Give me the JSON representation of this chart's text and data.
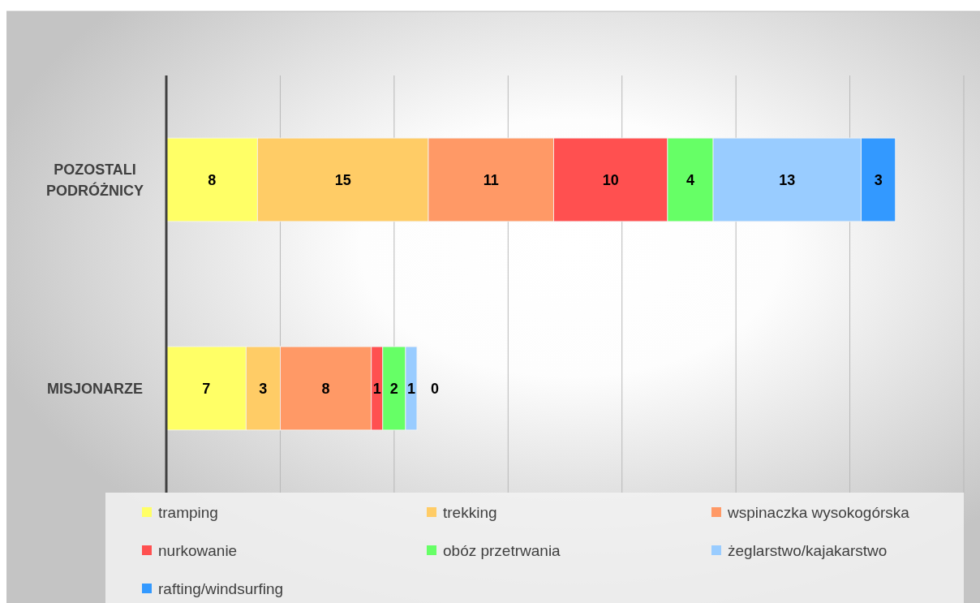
{
  "chart_data": {
    "type": "bar",
    "orientation": "horizontal",
    "stacked": true,
    "categories": [
      "POZOSTALI PODRÓŻNICY",
      "MISJONARZE"
    ],
    "series": [
      {
        "name": "tramping",
        "color": "#ffff66",
        "values": [
          8,
          7
        ]
      },
      {
        "name": "trekking",
        "color": "#ffcc66",
        "values": [
          15,
          3
        ]
      },
      {
        "name": "wspinaczka wysokogórska",
        "color": "#ff9966",
        "values": [
          11,
          8
        ]
      },
      {
        "name": "nurkowanie",
        "color": "#ff5050",
        "values": [
          10,
          1
        ]
      },
      {
        "name": "obóz przetrwania",
        "color": "#66ff66",
        "values": [
          4,
          2
        ]
      },
      {
        "name": "żeglarstwo/kajakarstwo",
        "color": "#99ccff",
        "values": [
          13,
          1
        ]
      },
      {
        "name": "rafting/windsurfing",
        "color": "#3399ff",
        "values": [
          3,
          0
        ]
      }
    ],
    "xlim": [
      0,
      70
    ],
    "xticks": [
      {
        "value": 0,
        "label": null
      },
      {
        "value": 10,
        "label": null
      },
      {
        "value": 20,
        "label": null
      },
      {
        "value": 30,
        "label": null
      },
      {
        "value": 40,
        "label": null
      },
      {
        "value": 50,
        "label": null
      },
      {
        "value": 60,
        "label": null
      },
      {
        "value": 70,
        "label": null
      }
    ],
    "tick_labels": "y",
    "grid": "x",
    "legend": "bottom",
    "data_labels": true
  }
}
